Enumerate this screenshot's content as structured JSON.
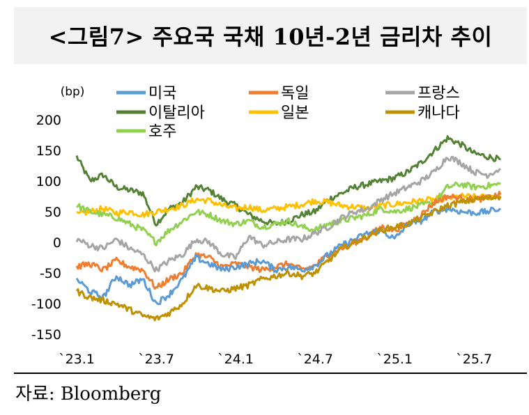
{
  "title": "<그림7> 주요국 국채 10년-2년 금리차 추이",
  "source": "자료: Bloomberg",
  "chart_data": {
    "type": "line",
    "unit_label": "(bp)",
    "ylim": [
      -150,
      200
    ],
    "y_ticks": [
      200,
      150,
      100,
      50,
      0,
      -50,
      -100,
      -150
    ],
    "x_tick_labels": [
      "`23.1",
      "`23.7",
      "`24.1",
      "`24.7",
      "`25.1",
      "`25.7"
    ],
    "x_tick_values": [
      0,
      6,
      12,
      18,
      24,
      30
    ],
    "x_range": [
      0,
      32.2
    ],
    "grid": false,
    "legend_position": "top",
    "series": [
      {
        "name": "미국",
        "color": "#5b9bd5",
        "x": [
          0,
          1,
          2,
          3,
          4,
          5,
          6,
          7,
          8,
          9,
          10,
          11,
          12,
          13,
          14,
          15,
          16,
          17,
          18,
          19,
          20,
          21,
          22,
          23,
          24,
          25,
          26,
          27,
          28,
          29,
          30,
          31,
          32
        ],
        "y": [
          -60,
          -80,
          -90,
          -55,
          -70,
          -60,
          -100,
          -85,
          -60,
          -25,
          -35,
          -45,
          -40,
          -35,
          -30,
          -45,
          -40,
          -45,
          -38,
          -20,
          -5,
          5,
          15,
          20,
          5,
          30,
          35,
          50,
          55,
          50,
          48,
          50,
          55
        ]
      },
      {
        "name": "독일",
        "color": "#ed7d31",
        "x": [
          0,
          1,
          2,
          3,
          4,
          5,
          6,
          7,
          8,
          9,
          10,
          11,
          12,
          13,
          14,
          15,
          16,
          17,
          18,
          19,
          20,
          21,
          22,
          23,
          24,
          25,
          26,
          27,
          28,
          29,
          30,
          31,
          32
        ],
        "y": [
          -40,
          -35,
          -45,
          -30,
          -40,
          -45,
          -75,
          -60,
          -50,
          -20,
          -25,
          -40,
          -35,
          -40,
          -45,
          -40,
          -35,
          -45,
          -38,
          -20,
          -10,
          0,
          10,
          25,
          20,
          30,
          45,
          65,
          75,
          72,
          70,
          72,
          78
        ]
      },
      {
        "name": "프랑스",
        "color": "#a5a5a5",
        "x": [
          0,
          1,
          2,
          3,
          4,
          5,
          6,
          7,
          8,
          9,
          10,
          11,
          12,
          13,
          14,
          15,
          16,
          17,
          18,
          19,
          20,
          21,
          22,
          23,
          24,
          25,
          26,
          27,
          28,
          29,
          30,
          31,
          32
        ],
        "y": [
          5,
          -5,
          -10,
          5,
          -10,
          -20,
          -45,
          -30,
          -20,
          5,
          0,
          -20,
          -25,
          10,
          -5,
          0,
          5,
          5,
          15,
          25,
          40,
          50,
          55,
          70,
          80,
          90,
          100,
          115,
          140,
          130,
          115,
          110,
          120
        ]
      },
      {
        "name": "이탈리아",
        "color": "#548235",
        "x": [
          0,
          1,
          2,
          3,
          4,
          5,
          6,
          7,
          8,
          9,
          10,
          11,
          12,
          13,
          14,
          15,
          16,
          17,
          18,
          19,
          20,
          21,
          22,
          23,
          24,
          25,
          26,
          27,
          28,
          29,
          30,
          31,
          32
        ],
        "y": [
          140,
          100,
          110,
          90,
          85,
          80,
          30,
          55,
          65,
          90,
          85,
          70,
          60,
          45,
          35,
          30,
          35,
          45,
          50,
          70,
          80,
          90,
          95,
          100,
          105,
          115,
          130,
          150,
          170,
          160,
          145,
          140,
          135
        ]
      },
      {
        "name": "일본",
        "color": "#ffc000",
        "x": [
          0,
          1,
          2,
          3,
          4,
          5,
          6,
          7,
          8,
          9,
          10,
          11,
          12,
          13,
          14,
          15,
          16,
          17,
          18,
          19,
          20,
          21,
          22,
          23,
          24,
          25,
          26,
          27,
          28,
          29,
          30,
          31,
          32
        ],
        "y": [
          45,
          50,
          55,
          48,
          50,
          45,
          50,
          55,
          60,
          70,
          68,
          60,
          55,
          58,
          52,
          55,
          58,
          62,
          68,
          65,
          60,
          58,
          55,
          60,
          62,
          65,
          68,
          70,
          72,
          75,
          74,
          74,
          76
        ]
      },
      {
        "name": "캐나다",
        "color": "#bf9000",
        "x": [
          0,
          1,
          2,
          3,
          4,
          5,
          6,
          7,
          8,
          9,
          10,
          11,
          12,
          13,
          14,
          15,
          16,
          17,
          18,
          19,
          20,
          21,
          22,
          23,
          24,
          25,
          26,
          27,
          28,
          29,
          30,
          31,
          32
        ],
        "y": [
          -80,
          -90,
          -95,
          -100,
          -110,
          -120,
          -125,
          -115,
          -100,
          -70,
          -75,
          -80,
          -75,
          -70,
          -60,
          -55,
          -50,
          -55,
          -50,
          -30,
          -10,
          0,
          10,
          20,
          25,
          30,
          40,
          50,
          60,
          65,
          70,
          72,
          75
        ]
      },
      {
        "name": "호주",
        "color": "#92d050",
        "x": [
          0,
          1,
          2,
          3,
          4,
          5,
          6,
          7,
          8,
          9,
          10,
          11,
          12,
          13,
          14,
          15,
          16,
          17,
          18,
          19,
          20,
          21,
          22,
          23,
          24,
          25,
          26,
          27,
          28,
          29,
          30,
          31,
          32
        ],
        "y": [
          60,
          50,
          45,
          40,
          30,
          20,
          0,
          20,
          35,
          50,
          45,
          35,
          30,
          35,
          25,
          30,
          35,
          25,
          20,
          30,
          35,
          40,
          45,
          55,
          50,
          55,
          60,
          65,
          90,
          95,
          90,
          92,
          95
        ]
      }
    ]
  }
}
